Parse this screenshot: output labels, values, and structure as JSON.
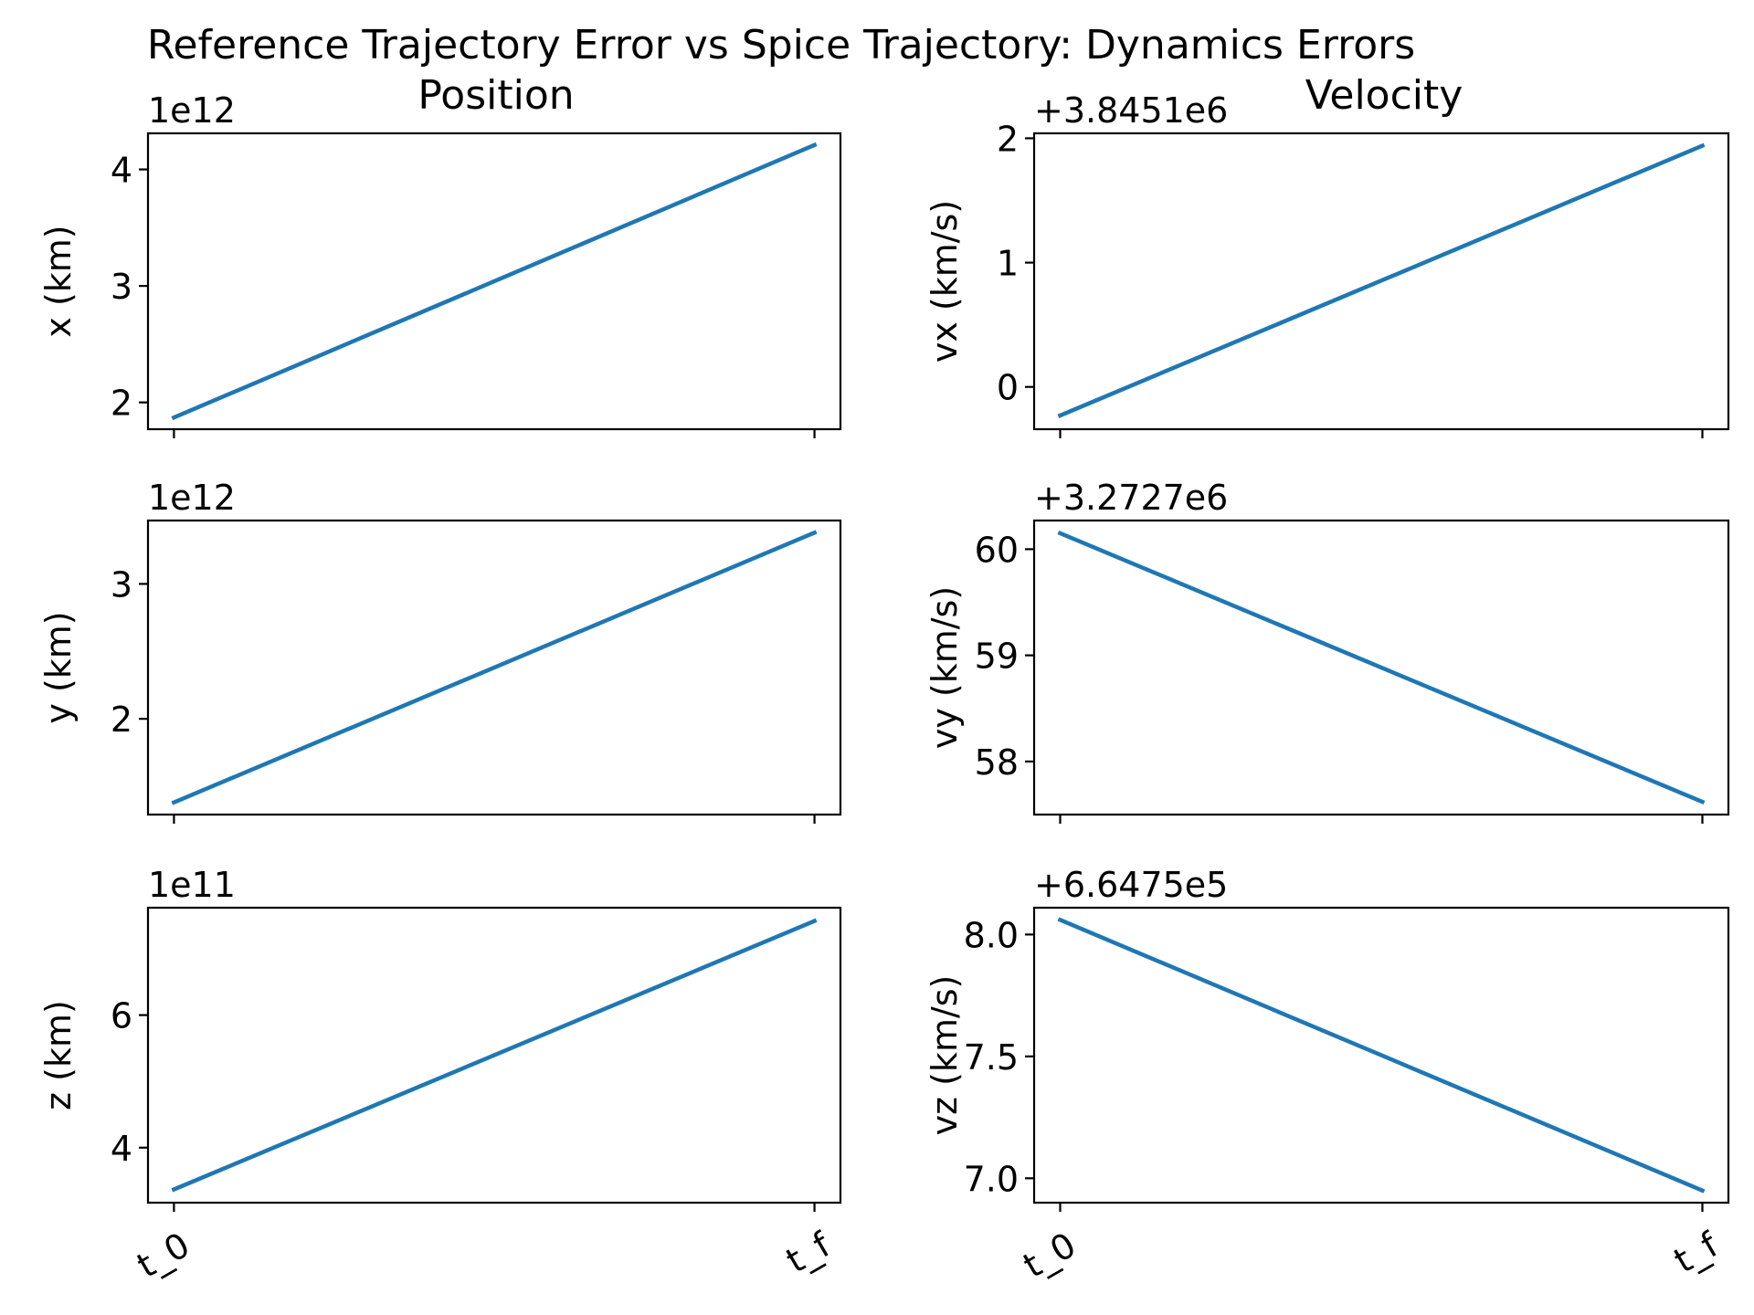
{
  "title": "Reference Trajectory Error vs Spice Trajectory: Dynamics Errors",
  "columns": [
    "Position",
    "Velocity"
  ],
  "line_color": "#1f77b4",
  "chart_data": [
    {
      "type": "line",
      "x": [
        "t_0",
        "t_f"
      ],
      "y": [
        1.87,
        4.21
      ],
      "ylabel": "x (km)",
      "offset_text": "1e12",
      "ylim": [
        1.77,
        4.31
      ],
      "yticks": [
        2,
        3,
        4
      ],
      "ytick_labels": [
        "2",
        "3",
        "4"
      ],
      "xtick_labels": [
        "t_0",
        "t_f"
      ],
      "show_xticklabels": false
    },
    {
      "type": "line",
      "x": [
        "t_0",
        "t_f"
      ],
      "y": [
        -0.23,
        1.94
      ],
      "ylabel": "vx (km/s)",
      "offset_text": "+3.8451e6",
      "ylim": [
        -0.34,
        2.04
      ],
      "yticks": [
        0,
        1,
        2
      ],
      "ytick_labels": [
        "0",
        "1",
        "2"
      ],
      "xtick_labels": [
        "t_0",
        "t_f"
      ],
      "show_xticklabels": false
    },
    {
      "type": "line",
      "x": [
        "t_0",
        "t_f"
      ],
      "y": [
        1.38,
        3.38
      ],
      "ylabel": "y (km)",
      "offset_text": "1e12",
      "ylim": [
        1.29,
        3.47
      ],
      "yticks": [
        2,
        3
      ],
      "ytick_labels": [
        "2",
        "3"
      ],
      "xtick_labels": [
        "t_0",
        "t_f"
      ],
      "show_xticklabels": false
    },
    {
      "type": "line",
      "x": [
        "t_0",
        "t_f"
      ],
      "y": [
        60.15,
        57.62
      ],
      "ylabel": "vy (km/s)",
      "offset_text": "+3.2727e6",
      "ylim": [
        57.5,
        60.27
      ],
      "yticks": [
        58,
        59,
        60
      ],
      "ytick_labels": [
        "58",
        "59",
        "60"
      ],
      "xtick_labels": [
        "t_0",
        "t_f"
      ],
      "show_xticklabels": false
    },
    {
      "type": "line",
      "x": [
        "t_0",
        "t_f"
      ],
      "y": [
        3.37,
        7.42
      ],
      "ylabel": "z (km)",
      "offset_text": "1e11",
      "ylim": [
        3.17,
        7.62
      ],
      "yticks": [
        4,
        6
      ],
      "ytick_labels": [
        "4",
        "6"
      ],
      "xtick_labels": [
        "t_0",
        "t_f"
      ],
      "show_xticklabels": true
    },
    {
      "type": "line",
      "x": [
        "t_0",
        "t_f"
      ],
      "y": [
        8.06,
        6.95
      ],
      "ylabel": "vz (km/s)",
      "offset_text": "+6.6475e5",
      "ylim": [
        6.9,
        8.11
      ],
      "yticks": [
        7.0,
        7.5,
        8.0
      ],
      "ytick_labels": [
        "7.0",
        "7.5",
        "8.0"
      ],
      "xtick_labels": [
        "t_0",
        "t_f"
      ],
      "show_xticklabels": true
    }
  ]
}
